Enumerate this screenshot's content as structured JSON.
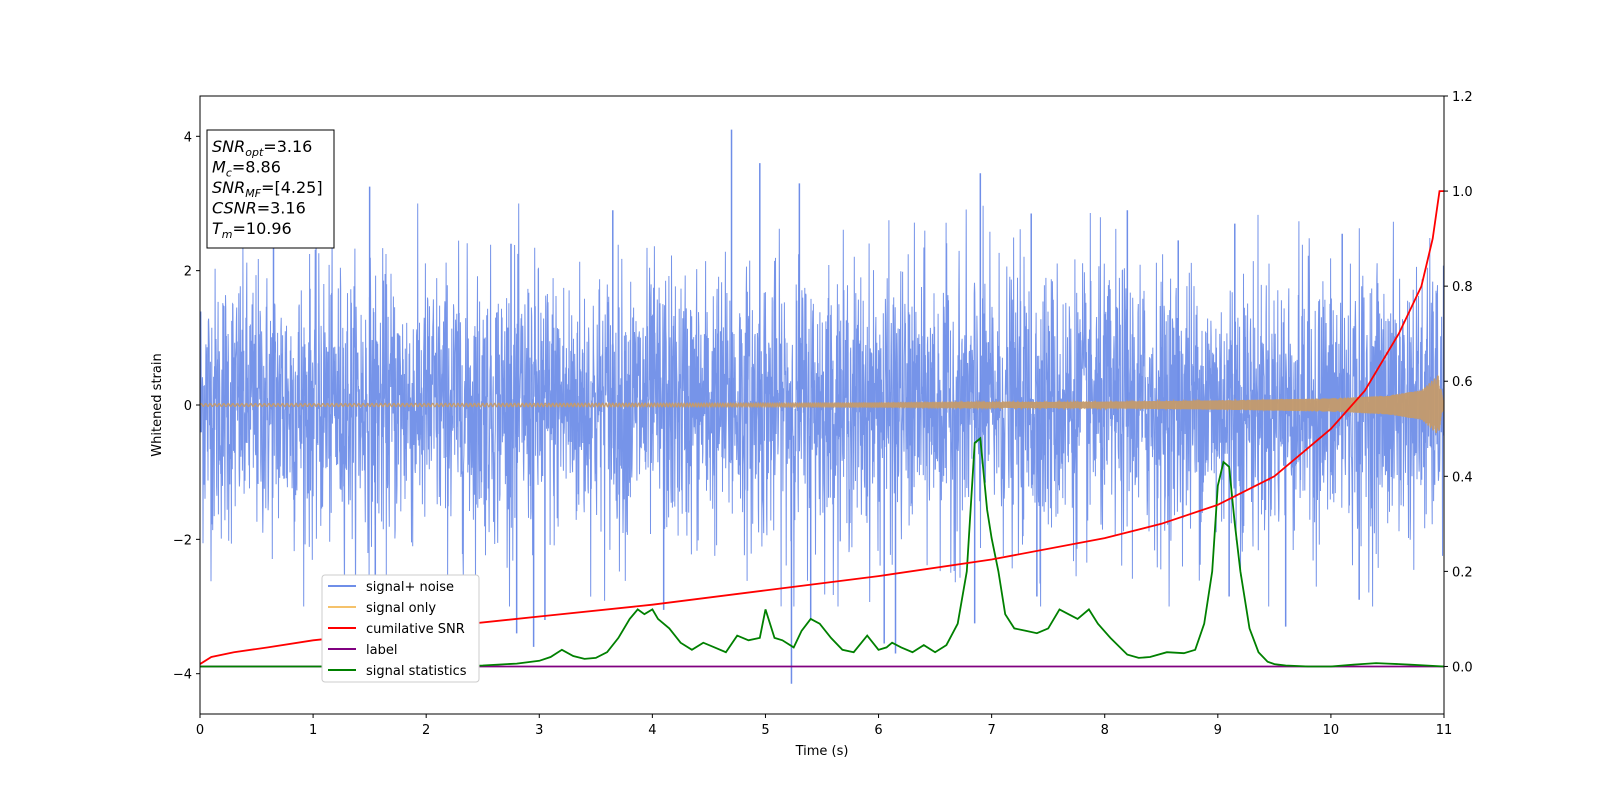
{
  "chart_data": {
    "type": "line",
    "xlabel": "Time (s)",
    "ylabel": "Whitened strain",
    "xlim": [
      0,
      11
    ],
    "ylim_left": [
      -4.6,
      4.6
    ],
    "ylim_right": [
      -0.1,
      1.2
    ],
    "x_ticks": [
      "0",
      "1",
      "2",
      "3",
      "4",
      "5",
      "6",
      "7",
      "8",
      "9",
      "10",
      "11"
    ],
    "y_ticks_left": [
      "−4",
      "−2",
      "0",
      "2",
      "4"
    ],
    "y_ticks_right": [
      "0.0",
      "0.2",
      "0.4",
      "0.6",
      "0.8",
      "1.0",
      "1.2"
    ],
    "grid": false,
    "legend_placement": "lower-left",
    "series": [
      {
        "name": "signal+ noise",
        "axis": "left",
        "color": "#6f8ee8",
        "style": "noise band, approx ±2 sigma with spikes",
        "spikes": [
          [
            0.65,
            3.3
          ],
          [
            1.5,
            3.25
          ],
          [
            2.75,
            2.4
          ],
          [
            3.65,
            2.9
          ],
          [
            4.7,
            4.1
          ],
          [
            4.95,
            3.6
          ],
          [
            5.3,
            3.3
          ],
          [
            6.9,
            3.45
          ],
          [
            7.35,
            2.85
          ],
          [
            8.2,
            2.9
          ],
          [
            8.65,
            2.45
          ],
          [
            9.15,
            2.7
          ],
          [
            10.1,
            2.55
          ],
          [
            1.55,
            -2.65
          ],
          [
            2.8,
            -3.4
          ],
          [
            2.95,
            -3.6
          ],
          [
            3.05,
            -3.2
          ],
          [
            4.1,
            -3.05
          ],
          [
            5.23,
            -4.15
          ],
          [
            5.4,
            -3.2
          ],
          [
            6.05,
            -3.55
          ],
          [
            6.15,
            -3.7
          ],
          [
            6.85,
            -3.25
          ],
          [
            7.4,
            -2.85
          ],
          [
            9.1,
            -2.85
          ],
          [
            9.6,
            -3.3
          ],
          [
            10.25,
            -2.9
          ]
        ]
      },
      {
        "name": "signal only",
        "axis": "left",
        "color": "#f5c26b",
        "style": "chirp with growing envelope",
        "envelope_x": [
          0,
          6,
          8,
          9,
          10,
          10.5,
          10.8,
          10.95,
          11.0
        ],
        "envelope_y": [
          0.02,
          0.03,
          0.05,
          0.07,
          0.1,
          0.14,
          0.22,
          0.45,
          0.0
        ]
      },
      {
        "name": "cumilative SNR",
        "axis": "right",
        "color": "#ff0000",
        "x": [
          0,
          0.1,
          0.3,
          0.6,
          1,
          2,
          3,
          4,
          5,
          6,
          7,
          8,
          8.5,
          9,
          9.5,
          10,
          10.3,
          10.6,
          10.8,
          10.9,
          10.96,
          11.0
        ],
        "y": [
          0.005,
          0.02,
          0.03,
          0.04,
          0.055,
          0.08,
          0.105,
          0.13,
          0.16,
          0.19,
          0.225,
          0.27,
          0.3,
          0.34,
          0.4,
          0.5,
          0.58,
          0.7,
          0.8,
          0.9,
          1.0,
          1.0
        ]
      },
      {
        "name": "label",
        "axis": "right",
        "color": "#800080",
        "x": [
          0,
          11
        ],
        "y": [
          0,
          0
        ]
      },
      {
        "name": "signal statistics",
        "axis": "right",
        "color": "#008000",
        "x": [
          0,
          0.5,
          1,
          1.5,
          2,
          2.5,
          2.8,
          3.0,
          3.1,
          3.2,
          3.3,
          3.4,
          3.5,
          3.6,
          3.7,
          3.8,
          3.87,
          3.93,
          4.0,
          4.05,
          4.15,
          4.25,
          4.35,
          4.45,
          4.55,
          4.65,
          4.75,
          4.85,
          4.95,
          5.0,
          5.08,
          5.15,
          5.25,
          5.32,
          5.4,
          5.48,
          5.58,
          5.68,
          5.78,
          5.9,
          6.0,
          6.07,
          6.12,
          6.2,
          6.3,
          6.4,
          6.5,
          6.6,
          6.7,
          6.78,
          6.85,
          6.9,
          6.96,
          7.0,
          7.06,
          7.12,
          7.2,
          7.3,
          7.4,
          7.5,
          7.6,
          7.68,
          7.76,
          7.86,
          7.94,
          8.05,
          8.2,
          8.3,
          8.4,
          8.55,
          8.7,
          8.8,
          8.88,
          8.95,
          9.0,
          9.05,
          9.1,
          9.15,
          9.2,
          9.28,
          9.36,
          9.44,
          9.5,
          9.6,
          9.8,
          10.0,
          10.2,
          10.4,
          10.5,
          10.7,
          11.0
        ],
        "y": [
          0,
          0,
          0,
          0,
          0,
          0.002,
          0.006,
          0.012,
          0.02,
          0.035,
          0.022,
          0.016,
          0.018,
          0.03,
          0.06,
          0.1,
          0.12,
          0.11,
          0.12,
          0.1,
          0.08,
          0.05,
          0.035,
          0.05,
          0.04,
          0.03,
          0.065,
          0.055,
          0.06,
          0.12,
          0.06,
          0.055,
          0.04,
          0.075,
          0.1,
          0.09,
          0.06,
          0.035,
          0.03,
          0.065,
          0.035,
          0.04,
          0.05,
          0.04,
          0.03,
          0.045,
          0.03,
          0.045,
          0.09,
          0.2,
          0.47,
          0.48,
          0.33,
          0.27,
          0.2,
          0.11,
          0.08,
          0.075,
          0.07,
          0.08,
          0.12,
          0.11,
          0.1,
          0.12,
          0.09,
          0.06,
          0.025,
          0.018,
          0.02,
          0.03,
          0.028,
          0.035,
          0.09,
          0.2,
          0.38,
          0.43,
          0.42,
          0.3,
          0.2,
          0.08,
          0.03,
          0.01,
          0.005,
          0.002,
          0,
          0,
          0.004,
          0.007,
          0.006,
          0.004,
          0
        ]
      }
    ],
    "annotation_box": [
      {
        "base": "SNR",
        "sub": "opt",
        "rest": "=3.16"
      },
      {
        "base": "M",
        "sub": "c",
        "rest": "=8.86"
      },
      {
        "base": "SNR",
        "sub": "MF",
        "rest": "=[4.25]"
      },
      {
        "base": "CSNR",
        "sub": "",
        "rest": "=3.16"
      },
      {
        "base": "T",
        "sub": "m",
        "rest": "=10.96"
      }
    ]
  }
}
